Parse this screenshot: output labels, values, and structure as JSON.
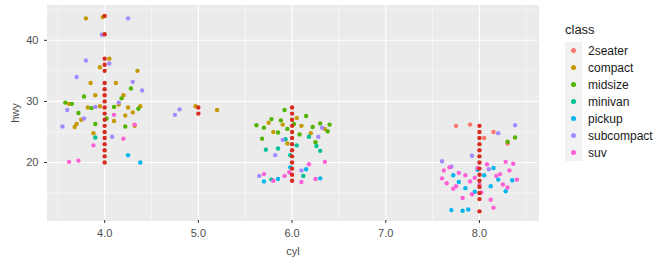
{
  "chart_data": {
    "type": "scatter",
    "x_label": "cyl",
    "y_label": "hwy",
    "legend_title": "class",
    "legend": "right",
    "grid": true,
    "xlim": [
      3.39,
      8.63
    ],
    "xticks": [
      4,
      5,
      6,
      7,
      8
    ],
    "ylim": [
      10.5,
      45.7
    ],
    "yticks": [
      20,
      30,
      40
    ],
    "series": [
      {
        "name": "2seater",
        "color": "#F8766D",
        "x": [
          7.75,
          8.15,
          7.9,
          8.05,
          8.3
        ],
        "values": [
          26,
          25,
          26.2,
          24,
          23.1
        ]
      },
      {
        "name": "compact",
        "color": "#C49A00",
        "x": [
          3.62,
          3.75,
          3.82,
          3.9,
          3.95,
          4.1,
          4.15,
          4.3,
          4.35,
          4.2,
          3.85,
          3.7,
          4.25,
          3.8,
          4.05,
          3.95,
          4.38,
          3.68,
          4.12,
          3.88,
          4.32,
          3.98,
          4.22,
          5.2,
          4.97,
          5.75,
          5.9,
          6.2,
          6.1,
          5.8,
          6.35,
          6.05,
          5.95
        ],
        "values": [
          29.6,
          27,
          29,
          31,
          29.2,
          26.8,
          29.5,
          28.2,
          35,
          31,
          33,
          26.3,
          29,
          43.6,
          37,
          35.6,
          29.2,
          25.8,
          33,
          24.8,
          26,
          43.8,
          27.7,
          28.6,
          29.2,
          26.5,
          26.2,
          24.8,
          26,
          25,
          25.5,
          27.3,
          23.1
        ]
      },
      {
        "name": "midsize",
        "color": "#53B400",
        "x": [
          3.58,
          3.65,
          3.72,
          3.86,
          4.02,
          4.18,
          4.28,
          3.9,
          4.1,
          3.78,
          4.36,
          4.22,
          5.62,
          5.7,
          5.78,
          5.85,
          5.92,
          6.02,
          6.15,
          6.22,
          6.3,
          6.38,
          5.68,
          5.95,
          6.08,
          6.25,
          6.4,
          5.88,
          8.3,
          8.38
        ],
        "values": [
          29.8,
          29.6,
          28.1,
          28.9,
          27.2,
          30.5,
          32.1,
          26.3,
          29.1,
          30.8,
          28.8,
          25.9,
          26.1,
          25.7,
          27.1,
          24.9,
          28.6,
          26.3,
          27.6,
          25.8,
          26.4,
          25.1,
          23.9,
          25.5,
          24.6,
          23.3,
          26.2,
          26.9,
          23.4,
          24.1
        ]
      },
      {
        "name": "minivan",
        "color": "#00C094",
        "x": [
          3.9,
          5.72,
          5.85,
          6.05,
          5.93,
          6.18,
          6.3,
          5.78,
          6.12,
          5.98,
          6.26
        ],
        "values": [
          24.1,
          22.1,
          22.3,
          22.8,
          23.8,
          24.2,
          21.9,
          17.2,
          17.8,
          21.2,
          22.7
        ]
      },
      {
        "name": "pickup",
        "color": "#00B6EB",
        "x": [
          4.38,
          4.25,
          5.7,
          5.85,
          6.15,
          6.3,
          5.98,
          7.7,
          7.82,
          7.95,
          8.12,
          8.2,
          7.78,
          8.28,
          7.88,
          8.05,
          8.35,
          7.72,
          8.15,
          7.98,
          7.85
        ],
        "values": [
          20,
          21.2,
          16.9,
          17.3,
          18.9,
          17.4,
          19.2,
          12.2,
          12.1,
          15.2,
          16.1,
          17.2,
          16.8,
          15.3,
          12.3,
          17.9,
          17.1,
          17.9,
          19.1,
          18.8,
          15.8
        ]
      },
      {
        "name": "subcompact",
        "color": "#A58AFF",
        "x": [
          3.55,
          3.7,
          3.8,
          3.97,
          4.25,
          4.05,
          4.3,
          3.6,
          3.9,
          4.08,
          4.4,
          3.78,
          4.15,
          4.75,
          4.8,
          5.65,
          5.82,
          6.1,
          6.28,
          6.32,
          5.9,
          7.6,
          7.7,
          8.1,
          7.92,
          8.2,
          8.38
        ],
        "values": [
          25.9,
          34,
          36.7,
          40.9,
          43.6,
          36.2,
          33.2,
          28.6,
          29.1,
          24.2,
          31.8,
          27.2,
          29.8,
          27.8,
          28.7,
          17.8,
          21.2,
          18.7,
          24.2,
          25.7,
          23.7,
          20.2,
          19.3,
          18.9,
          21.1,
          24.8,
          26.1
        ]
      },
      {
        "name": "suv",
        "color": "#FB61D7",
        "x": [
          3.62,
          3.72,
          3.88,
          4.2,
          4.32,
          4.1,
          5.7,
          5.8,
          5.92,
          6.1,
          6.25,
          6.35,
          5.97,
          6.18,
          7.6,
          7.65,
          7.72,
          7.78,
          7.82,
          7.9,
          7.95,
          8.02,
          8.08,
          8.12,
          8.18,
          8.25,
          8.32,
          8.4,
          7.68,
          7.75,
          7.85,
          7.92,
          8.0,
          8.15,
          8.22,
          8.3,
          8.36,
          7.62,
          7.98,
          8.28
        ],
        "values": [
          20.1,
          20.3,
          22.8,
          23.9,
          26.2,
          27.8,
          18.1,
          17,
          17.8,
          16.8,
          17.3,
          20.1,
          18.4,
          19.7,
          17.4,
          16.6,
          15.7,
          18.3,
          14.2,
          16.9,
          17.5,
          15.1,
          19.7,
          13.9,
          17.8,
          16.4,
          18.7,
          17.2,
          19.2,
          16.1,
          17.9,
          14.8,
          16.3,
          12.6,
          18.1,
          15.9,
          19.8,
          18.7,
          19.1,
          20.1
        ]
      },
      {
        "color": "#D62D20",
        "x": [
          4,
          4,
          4,
          4,
          4,
          4,
          4,
          4,
          4,
          4,
          4,
          4,
          4,
          4,
          4,
          4,
          4,
          4,
          4,
          5,
          5,
          6,
          6,
          6,
          6,
          6,
          6,
          6,
          6,
          6,
          6,
          6,
          6,
          6,
          8,
          8,
          8,
          8,
          8,
          8,
          8,
          8,
          8,
          8,
          8,
          8,
          8,
          8
        ],
        "values": [
          20,
          21,
          22,
          23,
          24,
          25,
          26,
          27,
          28,
          29,
          30,
          31,
          32,
          33,
          35,
          36,
          37,
          41,
          44,
          28,
          29,
          17,
          18,
          19,
          20,
          21,
          22,
          23,
          24,
          25,
          26,
          27,
          28,
          29,
          12,
          14,
          15,
          16,
          17,
          18,
          19,
          20,
          21,
          22,
          23,
          24,
          25,
          26
        ]
      }
    ]
  }
}
